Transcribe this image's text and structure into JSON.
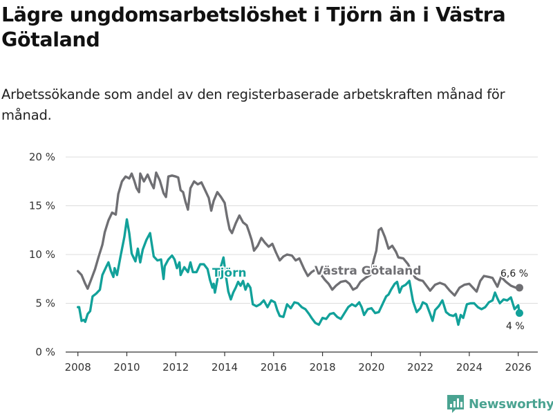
{
  "title": "Lägre ungdomsarbetslöshet i Tjörn än i Västra Götaland",
  "subtitle": "Arbetssökande som andel av den registerbaserade arbetskraften månad för månad.",
  "brand": {
    "name": "Newsworthy",
    "icon": "newsworthy-logo-icon"
  },
  "colors": {
    "tjorn": "#12a19a",
    "vg": "#6f6f73",
    "grid": "#dcdcdc",
    "axis": "#333333"
  },
  "chart_data": {
    "type": "line",
    "ylim": [
      0,
      20
    ],
    "yticks": [
      0,
      5,
      10,
      15,
      20
    ],
    "ytick_labels": [
      "0 %",
      "5 %",
      "10 %",
      "15 %",
      "20 %"
    ],
    "xlim": [
      2007.5,
      2026.8
    ],
    "xticks": [
      2008,
      2010,
      2012,
      2014,
      2016,
      2018,
      2020,
      2022,
      2024,
      2026
    ],
    "xtick_labels": [
      "2008",
      "2010",
      "2012",
      "2014",
      "2016",
      "2018",
      "2020",
      "2022",
      "2024",
      "2026"
    ],
    "series": [
      {
        "name": "Västra Götaland",
        "label": "Västra Götaland",
        "end_label": "6,6 %",
        "color_key": "vg",
        "points": [
          [
            2008.0,
            8.3
          ],
          [
            2008.15,
            7.9
          ],
          [
            2008.3,
            7.0
          ],
          [
            2008.4,
            6.5
          ],
          [
            2008.55,
            7.5
          ],
          [
            2008.7,
            8.5
          ],
          [
            2008.85,
            9.8
          ],
          [
            2009.0,
            11.0
          ],
          [
            2009.1,
            12.3
          ],
          [
            2009.25,
            13.5
          ],
          [
            2009.4,
            14.3
          ],
          [
            2009.55,
            14.1
          ],
          [
            2009.65,
            16.2
          ],
          [
            2009.8,
            17.5
          ],
          [
            2009.95,
            18.0
          ],
          [
            2010.1,
            17.8
          ],
          [
            2010.2,
            18.3
          ],
          [
            2010.3,
            17.6
          ],
          [
            2010.4,
            16.8
          ],
          [
            2010.5,
            16.4
          ],
          [
            2010.55,
            18.3
          ],
          [
            2010.7,
            17.5
          ],
          [
            2010.85,
            18.2
          ],
          [
            2011.0,
            17.3
          ],
          [
            2011.1,
            16.8
          ],
          [
            2011.2,
            18.4
          ],
          [
            2011.35,
            17.6
          ],
          [
            2011.5,
            16.3
          ],
          [
            2011.6,
            15.9
          ],
          [
            2011.7,
            18.0
          ],
          [
            2011.85,
            18.1
          ],
          [
            2012.0,
            18.0
          ],
          [
            2012.1,
            17.9
          ],
          [
            2012.2,
            16.6
          ],
          [
            2012.3,
            16.4
          ],
          [
            2012.4,
            15.4
          ],
          [
            2012.5,
            14.6
          ],
          [
            2012.6,
            16.8
          ],
          [
            2012.75,
            17.5
          ],
          [
            2012.9,
            17.2
          ],
          [
            2013.05,
            17.4
          ],
          [
            2013.2,
            16.6
          ],
          [
            2013.35,
            15.8
          ],
          [
            2013.45,
            14.5
          ],
          [
            2013.55,
            15.5
          ],
          [
            2013.7,
            16.4
          ],
          [
            2013.85,
            15.9
          ],
          [
            2014.0,
            15.3
          ],
          [
            2014.1,
            13.8
          ],
          [
            2014.2,
            12.6
          ],
          [
            2014.3,
            12.2
          ],
          [
            2014.45,
            13.2
          ],
          [
            2014.6,
            14.0
          ],
          [
            2014.75,
            13.3
          ],
          [
            2014.9,
            13.0
          ],
          [
            2015.0,
            12.3
          ],
          [
            2015.1,
            11.5
          ],
          [
            2015.2,
            10.4
          ],
          [
            2015.35,
            10.9
          ],
          [
            2015.5,
            11.7
          ],
          [
            2015.65,
            11.2
          ],
          [
            2015.8,
            10.8
          ],
          [
            2015.95,
            11.1
          ],
          [
            2016.1,
            10.2
          ],
          [
            2016.25,
            9.4
          ],
          [
            2016.4,
            9.8
          ],
          [
            2016.55,
            10.0
          ],
          [
            2016.75,
            9.9
          ],
          [
            2016.9,
            9.4
          ],
          [
            2017.05,
            9.6
          ],
          [
            2017.25,
            8.5
          ],
          [
            2017.4,
            7.8
          ],
          [
            2017.55,
            8.2
          ],
          [
            2017.75,
            8.5
          ],
          [
            2017.95,
            7.9
          ],
          [
            2018.1,
            7.4
          ],
          [
            2018.25,
            7.0
          ],
          [
            2018.4,
            6.4
          ],
          [
            2018.55,
            6.8
          ],
          [
            2018.75,
            7.2
          ],
          [
            2018.95,
            7.3
          ],
          [
            2019.1,
            7.0
          ],
          [
            2019.25,
            6.4
          ],
          [
            2019.4,
            6.6
          ],
          [
            2019.55,
            7.2
          ],
          [
            2019.75,
            7.6
          ],
          [
            2019.95,
            7.9
          ],
          [
            2020.1,
            9.5
          ],
          [
            2020.2,
            10.4
          ],
          [
            2020.3,
            12.5
          ],
          [
            2020.4,
            12.7
          ],
          [
            2020.55,
            11.8
          ],
          [
            2020.7,
            10.6
          ],
          [
            2020.85,
            10.9
          ],
          [
            2021.0,
            10.3
          ],
          [
            2021.1,
            9.7
          ],
          [
            2021.3,
            9.6
          ],
          [
            2021.5,
            9.0
          ],
          [
            2021.65,
            8.2
          ],
          [
            2021.8,
            7.6
          ],
          [
            2021.95,
            7.4
          ],
          [
            2022.1,
            7.3
          ],
          [
            2022.25,
            6.8
          ],
          [
            2022.4,
            6.3
          ],
          [
            2022.6,
            6.9
          ],
          [
            2022.8,
            7.1
          ],
          [
            2023.0,
            6.9
          ],
          [
            2023.2,
            6.3
          ],
          [
            2023.4,
            5.8
          ],
          [
            2023.6,
            6.6
          ],
          [
            2023.8,
            6.9
          ],
          [
            2024.0,
            7.0
          ],
          [
            2024.15,
            6.6
          ],
          [
            2024.3,
            6.2
          ],
          [
            2024.45,
            7.3
          ],
          [
            2024.6,
            7.8
          ],
          [
            2024.8,
            7.7
          ],
          [
            2024.95,
            7.6
          ],
          [
            2025.15,
            6.7
          ],
          [
            2025.3,
            7.7
          ],
          [
            2025.5,
            7.2
          ],
          [
            2025.7,
            6.8
          ],
          [
            2025.9,
            6.6
          ],
          [
            2026.05,
            6.6
          ]
        ]
      },
      {
        "name": "Tjörn",
        "label": "Tjörn",
        "end_label": "4 %",
        "color_key": "tjorn",
        "points": [
          [
            2008.0,
            4.6
          ],
          [
            2008.05,
            4.6
          ],
          [
            2008.15,
            3.2
          ],
          [
            2008.25,
            3.3
          ],
          [
            2008.3,
            3.1
          ],
          [
            2008.4,
            3.9
          ],
          [
            2008.5,
            4.2
          ],
          [
            2008.6,
            5.7
          ],
          [
            2008.75,
            6.0
          ],
          [
            2008.9,
            6.4
          ],
          [
            2009.0,
            7.9
          ],
          [
            2009.15,
            8.7
          ],
          [
            2009.25,
            9.2
          ],
          [
            2009.35,
            8.3
          ],
          [
            2009.45,
            7.7
          ],
          [
            2009.5,
            8.6
          ],
          [
            2009.6,
            7.9
          ],
          [
            2009.75,
            9.9
          ],
          [
            2009.9,
            11.8
          ],
          [
            2010.0,
            13.6
          ],
          [
            2010.1,
            12.2
          ],
          [
            2010.2,
            10.1
          ],
          [
            2010.35,
            9.3
          ],
          [
            2010.45,
            10.6
          ],
          [
            2010.55,
            9.2
          ],
          [
            2010.65,
            10.5
          ],
          [
            2010.8,
            11.5
          ],
          [
            2010.95,
            12.2
          ],
          [
            2011.1,
            9.8
          ],
          [
            2011.25,
            9.4
          ],
          [
            2011.4,
            9.5
          ],
          [
            2011.5,
            7.5
          ],
          [
            2011.55,
            8.8
          ],
          [
            2011.7,
            9.5
          ],
          [
            2011.85,
            9.9
          ],
          [
            2011.95,
            9.5
          ],
          [
            2012.05,
            8.6
          ],
          [
            2012.15,
            9.2
          ],
          [
            2012.2,
            7.9
          ],
          [
            2012.35,
            8.7
          ],
          [
            2012.5,
            8.2
          ],
          [
            2012.6,
            9.2
          ],
          [
            2012.7,
            8.2
          ],
          [
            2012.85,
            8.2
          ],
          [
            2013.0,
            9.0
          ],
          [
            2013.15,
            9.0
          ],
          [
            2013.3,
            8.5
          ],
          [
            2013.4,
            7.4
          ],
          [
            2013.5,
            6.6
          ],
          [
            2013.55,
            7.0
          ],
          [
            2013.6,
            6.1
          ],
          [
            2013.7,
            7.4
          ],
          [
            2013.85,
            8.8
          ],
          [
            2013.95,
            9.7
          ],
          [
            2014.05,
            7.8
          ],
          [
            2014.15,
            6.2
          ],
          [
            2014.25,
            5.4
          ],
          [
            2014.35,
            6.1
          ],
          [
            2014.45,
            6.6
          ],
          [
            2014.55,
            7.2
          ],
          [
            2014.65,
            6.8
          ],
          [
            2014.75,
            7.3
          ],
          [
            2014.85,
            6.4
          ],
          [
            2014.95,
            7.0
          ],
          [
            2015.05,
            6.6
          ],
          [
            2015.15,
            4.9
          ],
          [
            2015.3,
            4.7
          ],
          [
            2015.45,
            4.9
          ],
          [
            2015.6,
            5.3
          ],
          [
            2015.75,
            4.6
          ],
          [
            2015.9,
            5.3
          ],
          [
            2016.05,
            5.1
          ],
          [
            2016.15,
            4.3
          ],
          [
            2016.25,
            3.7
          ],
          [
            2016.4,
            3.6
          ],
          [
            2016.55,
            4.9
          ],
          [
            2016.7,
            4.5
          ],
          [
            2016.85,
            5.1
          ],
          [
            2017.0,
            5.0
          ],
          [
            2017.15,
            4.6
          ],
          [
            2017.3,
            4.4
          ],
          [
            2017.45,
            3.9
          ],
          [
            2017.55,
            3.5
          ],
          [
            2017.7,
            3.0
          ],
          [
            2017.85,
            2.8
          ],
          [
            2018.0,
            3.5
          ],
          [
            2018.15,
            3.4
          ],
          [
            2018.3,
            3.9
          ],
          [
            2018.45,
            4.0
          ],
          [
            2018.6,
            3.6
          ],
          [
            2018.75,
            3.4
          ],
          [
            2018.9,
            4.0
          ],
          [
            2019.05,
            4.6
          ],
          [
            2019.2,
            4.9
          ],
          [
            2019.35,
            4.7
          ],
          [
            2019.5,
            5.1
          ],
          [
            2019.6,
            4.6
          ],
          [
            2019.7,
            3.8
          ],
          [
            2019.85,
            4.4
          ],
          [
            2020.0,
            4.5
          ],
          [
            2020.15,
            4.0
          ],
          [
            2020.3,
            4.1
          ],
          [
            2020.45,
            4.9
          ],
          [
            2020.6,
            5.7
          ],
          [
            2020.7,
            5.9
          ],
          [
            2020.8,
            6.4
          ],
          [
            2020.95,
            7.0
          ],
          [
            2021.05,
            7.2
          ],
          [
            2021.15,
            6.1
          ],
          [
            2021.25,
            6.7
          ],
          [
            2021.4,
            6.9
          ],
          [
            2021.55,
            7.3
          ],
          [
            2021.7,
            5.2
          ],
          [
            2021.85,
            4.1
          ],
          [
            2022.0,
            4.5
          ],
          [
            2022.1,
            5.1
          ],
          [
            2022.25,
            4.9
          ],
          [
            2022.4,
            3.9
          ],
          [
            2022.5,
            3.2
          ],
          [
            2022.6,
            4.3
          ],
          [
            2022.75,
            4.7
          ],
          [
            2022.9,
            5.3
          ],
          [
            2023.05,
            4.1
          ],
          [
            2023.2,
            3.8
          ],
          [
            2023.35,
            3.7
          ],
          [
            2023.45,
            3.9
          ],
          [
            2023.55,
            2.8
          ],
          [
            2023.65,
            3.8
          ],
          [
            2023.75,
            3.5
          ],
          [
            2023.9,
            4.9
          ],
          [
            2024.05,
            5.0
          ],
          [
            2024.2,
            5.0
          ],
          [
            2024.35,
            4.6
          ],
          [
            2024.5,
            4.4
          ],
          [
            2024.65,
            4.6
          ],
          [
            2024.8,
            5.1
          ],
          [
            2024.95,
            5.3
          ],
          [
            2025.05,
            6.1
          ],
          [
            2025.15,
            5.5
          ],
          [
            2025.25,
            5.0
          ],
          [
            2025.4,
            5.4
          ],
          [
            2025.55,
            5.3
          ],
          [
            2025.7,
            5.6
          ],
          [
            2025.85,
            4.4
          ],
          [
            2026.0,
            4.8
          ],
          [
            2026.05,
            4.0
          ]
        ]
      }
    ]
  }
}
